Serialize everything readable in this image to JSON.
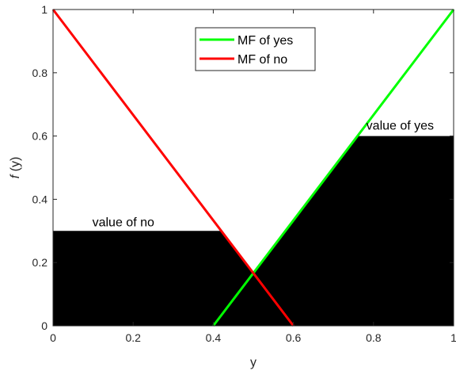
{
  "chart_data": {
    "type": "line",
    "xlabel": "y",
    "ylabel_italic": "f",
    "ylabel_rest": " (y)",
    "xlim": [
      0,
      1
    ],
    "ylim": [
      0,
      1
    ],
    "x_ticks": [
      0,
      0.2,
      0.4,
      0.6,
      0.8,
      1
    ],
    "x_tick_labels": [
      "0",
      "0.2",
      "0.4",
      "0.6",
      "0.8",
      "1"
    ],
    "y_ticks": [
      0,
      0.2,
      0.4,
      0.6,
      0.8,
      1
    ],
    "y_tick_labels": [
      "0",
      "0.2",
      "0.4",
      "0.6",
      "0.8",
      "1"
    ],
    "grid": false,
    "legend_position": "top-center",
    "series": [
      {
        "name": "MF of yes",
        "color": "#00ff00",
        "x": [
          0.4,
          1.0
        ],
        "y": [
          0,
          1
        ]
      },
      {
        "name": "MF of no",
        "color": "#ff0000",
        "x": [
          0.0,
          0.6
        ],
        "y": [
          1,
          0
        ]
      }
    ],
    "filled_regions": [
      {
        "label": "value of no",
        "color": "#000000",
        "x": [
          0,
          0.42,
          0.5,
          0.6,
          0.76,
          1.0
        ],
        "y": [
          0.3,
          0.3,
          0.1667,
          0.3333,
          0.6,
          0.6
        ]
      },
      {
        "label": "value of yes",
        "color": "#000000"
      }
    ],
    "annotations": [
      {
        "text": "value of no",
        "x": 0.1,
        "y": 0.32
      },
      {
        "text": "value of yes",
        "x": 0.78,
        "y": 0.62
      }
    ]
  }
}
